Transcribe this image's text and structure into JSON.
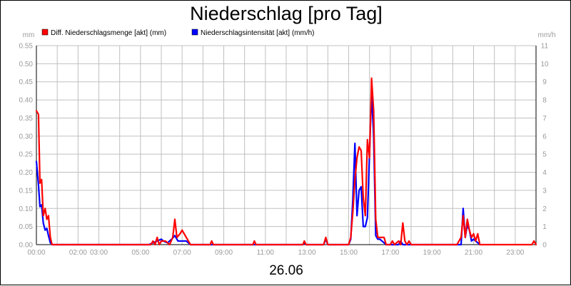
{
  "title": "Niederschlag [pro Tag]",
  "date_label": "26.06",
  "chart_data": {
    "type": "line",
    "title": "Niederschlag [pro Tag]",
    "left_unit": "mm",
    "right_unit": "mm/h",
    "grid": true,
    "legend_position": "top-left",
    "x_range_hours": [
      0,
      24
    ],
    "y_left_range": [
      0,
      0.55
    ],
    "y_right_range": [
      0,
      11
    ],
    "y_left_ticks": [
      "0.00",
      "0.05",
      "0.10",
      "0.15",
      "0.20",
      "0.25",
      "0.30",
      "0.35",
      "0.40",
      "0.45",
      "0.50",
      "0.55"
    ],
    "y_right_ticks": [
      "0",
      "1",
      "2",
      "3",
      "4",
      "5",
      "6",
      "7",
      "8",
      "9",
      "10",
      "11"
    ],
    "x_ticks": [
      {
        "h": 0,
        "label": "00:00"
      },
      {
        "h": 2,
        "label": "02:00"
      },
      {
        "h": 3,
        "label": "03:00"
      },
      {
        "h": 5,
        "label": "05:00"
      },
      {
        "h": 7,
        "label": "07:00"
      },
      {
        "h": 9,
        "label": "09:00"
      },
      {
        "h": 11,
        "label": "11:00"
      },
      {
        "h": 13,
        "label": "13:00"
      },
      {
        "h": 15,
        "label": "15:00"
      },
      {
        "h": 17,
        "label": "17:00"
      },
      {
        "h": 19,
        "label": "19:00"
      },
      {
        "h": 21,
        "label": "21:00"
      },
      {
        "h": 23,
        "label": "23:00"
      }
    ],
    "series": [
      {
        "name": "Diff. Niederschlagsmenge [akt] (mm)",
        "color": "#ff0000",
        "axis": "left",
        "points": [
          [
            0.0,
            0.37
          ],
          [
            0.1,
            0.36
          ],
          [
            0.17,
            0.17
          ],
          [
            0.25,
            0.18
          ],
          [
            0.33,
            0.08
          ],
          [
            0.42,
            0.1
          ],
          [
            0.5,
            0.07
          ],
          [
            0.58,
            0.08
          ],
          [
            0.67,
            0.02
          ],
          [
            0.75,
            0.0
          ],
          [
            0.85,
            0.0
          ],
          [
            5.5,
            0.0
          ],
          [
            5.6,
            0.01
          ],
          [
            5.7,
            0.0
          ],
          [
            5.8,
            0.02
          ],
          [
            5.9,
            0.0
          ],
          [
            6.0,
            0.01
          ],
          [
            6.2,
            0.01
          ],
          [
            6.4,
            0.0
          ],
          [
            6.55,
            0.02
          ],
          [
            6.65,
            0.07
          ],
          [
            6.75,
            0.02
          ],
          [
            6.9,
            0.03
          ],
          [
            7.0,
            0.04
          ],
          [
            7.1,
            0.03
          ],
          [
            7.2,
            0.02
          ],
          [
            7.3,
            0.01
          ],
          [
            7.4,
            0.0
          ],
          [
            8.35,
            0.0
          ],
          [
            8.42,
            0.01
          ],
          [
            8.5,
            0.0
          ],
          [
            10.4,
            0.0
          ],
          [
            10.47,
            0.01
          ],
          [
            10.55,
            0.0
          ],
          [
            12.8,
            0.0
          ],
          [
            12.87,
            0.01
          ],
          [
            12.95,
            0.0
          ],
          [
            13.8,
            0.0
          ],
          [
            13.9,
            0.02
          ],
          [
            14.0,
            0.0
          ],
          [
            15.0,
            0.0
          ],
          [
            15.1,
            0.02
          ],
          [
            15.2,
            0.09
          ],
          [
            15.3,
            0.18
          ],
          [
            15.4,
            0.24
          ],
          [
            15.5,
            0.27
          ],
          [
            15.6,
            0.26
          ],
          [
            15.7,
            0.13
          ],
          [
            15.8,
            0.08
          ],
          [
            15.9,
            0.29
          ],
          [
            16.0,
            0.24
          ],
          [
            16.1,
            0.46
          ],
          [
            16.2,
            0.37
          ],
          [
            16.3,
            0.07
          ],
          [
            16.4,
            0.02
          ],
          [
            16.5,
            0.02
          ],
          [
            16.6,
            0.02
          ],
          [
            16.7,
            0.02
          ],
          [
            16.8,
            0.0
          ],
          [
            17.0,
            0.0
          ],
          [
            17.1,
            0.01
          ],
          [
            17.2,
            0.0
          ],
          [
            17.4,
            0.01
          ],
          [
            17.5,
            0.0
          ],
          [
            17.6,
            0.06
          ],
          [
            17.7,
            0.01
          ],
          [
            17.8,
            0.0
          ],
          [
            17.9,
            0.01
          ],
          [
            18.0,
            0.0
          ],
          [
            20.2,
            0.0
          ],
          [
            20.3,
            0.01
          ],
          [
            20.4,
            0.02
          ],
          [
            20.5,
            0.08
          ],
          [
            20.6,
            0.02
          ],
          [
            20.7,
            0.07
          ],
          [
            20.8,
            0.04
          ],
          [
            20.9,
            0.02
          ],
          [
            21.0,
            0.03
          ],
          [
            21.1,
            0.01
          ],
          [
            21.2,
            0.03
          ],
          [
            21.3,
            0.0
          ],
          [
            23.8,
            0.0
          ],
          [
            23.9,
            0.01
          ],
          [
            24.0,
            0.0
          ]
        ]
      },
      {
        "name": "Niederschlagsintensität [akt] (mm/h)",
        "color": "#0000ff",
        "axis": "right",
        "points": [
          [
            0.0,
            4.6
          ],
          [
            0.1,
            3.3
          ],
          [
            0.17,
            2.1
          ],
          [
            0.25,
            2.2
          ],
          [
            0.33,
            1.2
          ],
          [
            0.42,
            0.8
          ],
          [
            0.5,
            0.9
          ],
          [
            0.58,
            0.5
          ],
          [
            0.67,
            0.1
          ],
          [
            0.75,
            0.0
          ],
          [
            0.85,
            0.0
          ],
          [
            5.4,
            0.0
          ],
          [
            5.6,
            0.1
          ],
          [
            5.8,
            0.2
          ],
          [
            6.0,
            0.3
          ],
          [
            6.1,
            0.2
          ],
          [
            6.3,
            0.1
          ],
          [
            6.5,
            0.3
          ],
          [
            6.65,
            0.5
          ],
          [
            6.8,
            0.2
          ],
          [
            7.0,
            0.2
          ],
          [
            7.2,
            0.2
          ],
          [
            7.4,
            0.0
          ],
          [
            12.8,
            0.0
          ],
          [
            12.87,
            0.1
          ],
          [
            12.95,
            0.0
          ],
          [
            13.8,
            0.0
          ],
          [
            13.9,
            0.3
          ],
          [
            14.0,
            0.0
          ],
          [
            15.0,
            0.0
          ],
          [
            15.1,
            0.3
          ],
          [
            15.2,
            2.5
          ],
          [
            15.3,
            5.6
          ],
          [
            15.4,
            1.6
          ],
          [
            15.5,
            3.0
          ],
          [
            15.6,
            3.2
          ],
          [
            15.7,
            1.0
          ],
          [
            15.8,
            1.0
          ],
          [
            15.9,
            1.5
          ],
          [
            16.0,
            5.0
          ],
          [
            16.1,
            8.4
          ],
          [
            16.2,
            6.0
          ],
          [
            16.3,
            0.5
          ],
          [
            16.4,
            0.3
          ],
          [
            16.5,
            0.3
          ],
          [
            16.6,
            0.2
          ],
          [
            16.8,
            0.0
          ],
          [
            17.4,
            0.0
          ],
          [
            17.5,
            0.2
          ],
          [
            17.6,
            0.0
          ],
          [
            20.4,
            0.0
          ],
          [
            20.5,
            2.0
          ],
          [
            20.6,
            0.4
          ],
          [
            20.7,
            1.1
          ],
          [
            20.8,
            0.8
          ],
          [
            20.9,
            0.2
          ],
          [
            21.0,
            0.3
          ],
          [
            21.2,
            0.1
          ],
          [
            21.3,
            0.0
          ]
        ]
      }
    ]
  }
}
